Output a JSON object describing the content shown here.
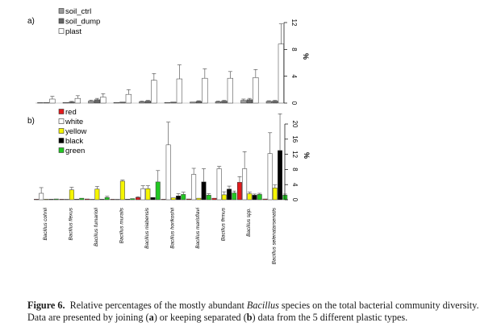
{
  "figure": {
    "caption": {
      "label": "Figure 6.",
      "part1": "Relative percentages of the mostly abundant ",
      "genus": "Bacillus",
      "part2": " species on the total bacterial community diversity. Data are presented by joining (",
      "a": "a",
      "part3": ") or keeping separated (",
      "b": "b",
      "part4": ") data from the 5 different plastic types."
    }
  },
  "chart_data": [
    {
      "panel": "a)",
      "type": "bar",
      "ylabel": "%",
      "ylim": [
        0,
        12
      ],
      "yticks": [
        0,
        4,
        8,
        12
      ],
      "grid": false,
      "legend_position": "top-left",
      "categories": [
        "Bacillus cohnii",
        "Bacillus flexus",
        "Bacillus fumarioli",
        "Bacillus muralis",
        "Bacillus niabensis",
        "Bacillus horikoshii",
        "Bacillus marisflavi",
        "Bacillus firmus",
        "Bacillus spp.",
        "Bacillus selenatarsenatis"
      ],
      "series": [
        {
          "name": "soil_ctrl",
          "color": "#9a9a9a",
          "values": [
            0.05,
            0.1,
            0.3,
            0.1,
            0.2,
            0.1,
            0.15,
            0.2,
            0.4,
            0.25
          ],
          "errors": [
            0,
            0,
            0.15,
            0,
            0.1,
            0,
            0,
            0.1,
            0.2,
            0.1
          ]
        },
        {
          "name": "soil_dump",
          "color": "#666666",
          "values": [
            0.05,
            0.15,
            0.5,
            0.15,
            0.3,
            0.15,
            0.25,
            0.3,
            0.5,
            0.3
          ],
          "errors": [
            0,
            0.1,
            0.2,
            0,
            0.1,
            0,
            0.1,
            0.1,
            0.2,
            0.1
          ]
        },
        {
          "name": "plast",
          "color": "#ffffff",
          "values": [
            0.6,
            0.7,
            0.9,
            1.3,
            3.4,
            3.6,
            3.7,
            3.7,
            3.8,
            8.8
          ],
          "errors": [
            0.4,
            0.4,
            0.5,
            0.7,
            1.0,
            2.1,
            1.4,
            1.0,
            1.2,
            3.0
          ]
        }
      ]
    },
    {
      "panel": "b)",
      "type": "bar",
      "ylabel": "%",
      "ylim": [
        0,
        20
      ],
      "yticks": [
        0,
        4,
        8,
        12,
        16,
        20
      ],
      "grid": false,
      "legend_position": "top-left",
      "categories": [
        "Bacillus cohnii",
        "Bacillus flexus",
        "Bacillus fumarioli",
        "Bacillus muralis",
        "Bacillus niabensis",
        "Bacillus horikoshii",
        "Bacillus marisflavi",
        "Bacillus firmus",
        "Bacillus spp.",
        "Bacillus selenatarsenatis"
      ],
      "series": [
        {
          "name": "red",
          "color": "#e31a1c",
          "values": [
            0,
            0,
            0.2,
            0,
            0.6,
            0,
            0.2,
            0.4,
            4.6,
            0.2
          ],
          "errors": [
            0,
            0,
            0,
            0,
            0.2,
            0,
            0,
            0,
            1.5,
            0
          ]
        },
        {
          "name": "white",
          "color": "#ffffff",
          "values": [
            1.7,
            0,
            0,
            0,
            2.9,
            14.5,
            6.7,
            8.2,
            8.2,
            12.2
          ],
          "errors": [
            1.5,
            0,
            0,
            0,
            0.8,
            6.0,
            1.6,
            0.6,
            4.5,
            5.5
          ]
        },
        {
          "name": "yellow",
          "color": "#f5f500",
          "values": [
            0,
            2.6,
            2.8,
            4.9,
            2.9,
            0.5,
            0.4,
            1.3,
            1.6,
            3.1
          ],
          "errors": [
            0,
            0.7,
            0.7,
            0.3,
            0.8,
            0,
            0,
            0.8,
            0.4,
            0.8
          ]
        },
        {
          "name": "black",
          "color": "#000000",
          "values": [
            0,
            0,
            0,
            0,
            0.6,
            1.0,
            4.7,
            2.8,
            1.2,
            13.0
          ],
          "errors": [
            0,
            0,
            0,
            0,
            0,
            0.6,
            3.5,
            0.8,
            0.3,
            9.7
          ]
        },
        {
          "name": "green",
          "color": "#22c722",
          "values": [
            0.2,
            0.4,
            0.6,
            0.3,
            4.7,
            1.4,
            1.2,
            1.8,
            1.4,
            1.2
          ],
          "errors": [
            0,
            0,
            0.3,
            0,
            3.0,
            0.6,
            0.4,
            0.5,
            0.3,
            0.3
          ]
        }
      ]
    }
  ]
}
